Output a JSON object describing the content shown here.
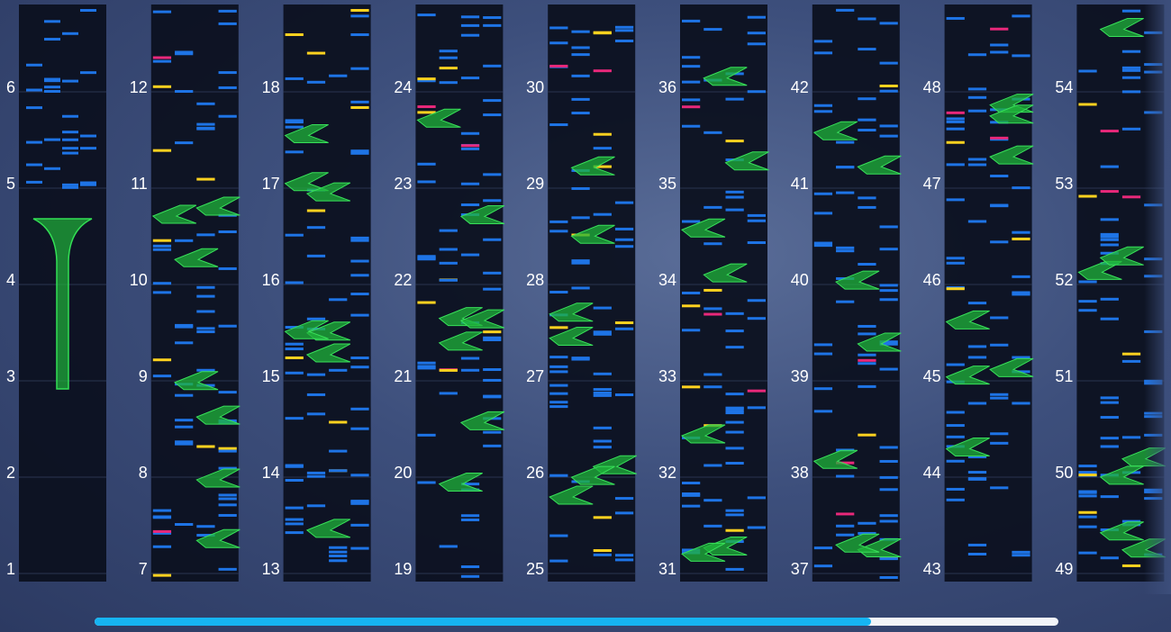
{
  "columns": [
    {
      "measures": [
        1,
        2,
        3,
        4,
        5,
        6
      ]
    },
    {
      "measures": [
        7,
        8,
        9,
        10,
        11,
        12
      ]
    },
    {
      "measures": [
        13,
        14,
        15,
        16,
        17,
        18
      ]
    },
    {
      "measures": [
        19,
        20,
        21,
        22,
        23,
        24
      ]
    },
    {
      "measures": [
        25,
        26,
        27,
        28,
        29,
        30
      ]
    },
    {
      "measures": [
        31,
        32,
        33,
        34,
        35,
        36
      ]
    },
    {
      "measures": [
        37,
        38,
        39,
        40,
        41,
        42
      ]
    },
    {
      "measures": [
        43,
        44,
        45,
        46,
        47,
        48
      ]
    },
    {
      "measures": [
        49,
        50,
        51,
        52,
        53,
        54
      ]
    }
  ]
}
